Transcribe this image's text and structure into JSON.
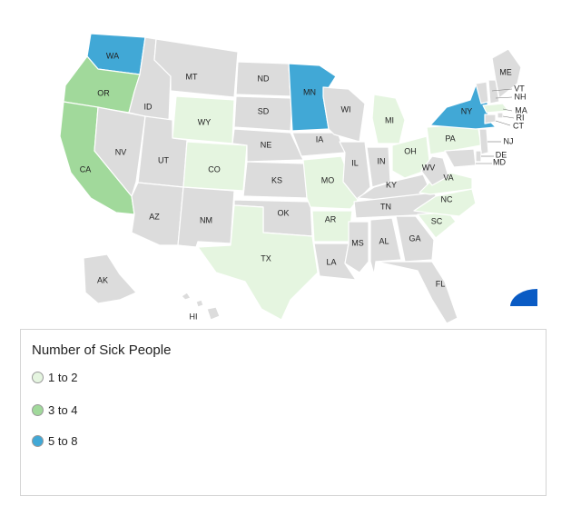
{
  "legend": {
    "title": "Number of Sick People",
    "items": [
      {
        "label": "1 to 2",
        "color": "#e5f5e0"
      },
      {
        "label": "3 to 4",
        "color": "#a1d99b"
      },
      {
        "label": "5 to 8",
        "color": "#41a8d6"
      }
    ]
  },
  "colors": {
    "none": "#dcdcdc",
    "c1": "#e5f5e0",
    "c2": "#a1d99b",
    "c3": "#41a8d6",
    "accent_shape": "#0a5bc4"
  },
  "states": [
    {
      "abbr": "WA",
      "bin": "c3"
    },
    {
      "abbr": "OR",
      "bin": "c2"
    },
    {
      "abbr": "CA",
      "bin": "c2"
    },
    {
      "abbr": "ID",
      "bin": "none"
    },
    {
      "abbr": "NV",
      "bin": "none"
    },
    {
      "abbr": "MT",
      "bin": "none"
    },
    {
      "abbr": "WY",
      "bin": "c1"
    },
    {
      "abbr": "UT",
      "bin": "none"
    },
    {
      "abbr": "AZ",
      "bin": "none"
    },
    {
      "abbr": "CO",
      "bin": "c1"
    },
    {
      "abbr": "NM",
      "bin": "none"
    },
    {
      "abbr": "ND",
      "bin": "none"
    },
    {
      "abbr": "SD",
      "bin": "none"
    },
    {
      "abbr": "NE",
      "bin": "none"
    },
    {
      "abbr": "KS",
      "bin": "none"
    },
    {
      "abbr": "OK",
      "bin": "none"
    },
    {
      "abbr": "TX",
      "bin": "c1"
    },
    {
      "abbr": "MN",
      "bin": "c3"
    },
    {
      "abbr": "IA",
      "bin": "none"
    },
    {
      "abbr": "MO",
      "bin": "c1"
    },
    {
      "abbr": "AR",
      "bin": "c1"
    },
    {
      "abbr": "LA",
      "bin": "none"
    },
    {
      "abbr": "WI",
      "bin": "none"
    },
    {
      "abbr": "IL",
      "bin": "none"
    },
    {
      "abbr": "MI",
      "bin": "c1"
    },
    {
      "abbr": "IN",
      "bin": "none"
    },
    {
      "abbr": "OH",
      "bin": "c1"
    },
    {
      "abbr": "KY",
      "bin": "none"
    },
    {
      "abbr": "TN",
      "bin": "none"
    },
    {
      "abbr": "MS",
      "bin": "none"
    },
    {
      "abbr": "AL",
      "bin": "none"
    },
    {
      "abbr": "GA",
      "bin": "none"
    },
    {
      "abbr": "FL",
      "bin": "none"
    },
    {
      "abbr": "SC",
      "bin": "c1"
    },
    {
      "abbr": "NC",
      "bin": "c1"
    },
    {
      "abbr": "VA",
      "bin": "c1"
    },
    {
      "abbr": "WV",
      "bin": "none"
    },
    {
      "abbr": "PA",
      "bin": "c1"
    },
    {
      "abbr": "NY",
      "bin": "c3"
    },
    {
      "abbr": "VT",
      "bin": "none"
    },
    {
      "abbr": "NH",
      "bin": "none"
    },
    {
      "abbr": "ME",
      "bin": "none"
    },
    {
      "abbr": "MA",
      "bin": "c1"
    },
    {
      "abbr": "RI",
      "bin": "none"
    },
    {
      "abbr": "CT",
      "bin": "none"
    },
    {
      "abbr": "NJ",
      "bin": "none"
    },
    {
      "abbr": "DE",
      "bin": "none"
    },
    {
      "abbr": "MD",
      "bin": "none"
    },
    {
      "abbr": "AK",
      "bin": "none"
    },
    {
      "abbr": "HI",
      "bin": "none"
    }
  ]
}
